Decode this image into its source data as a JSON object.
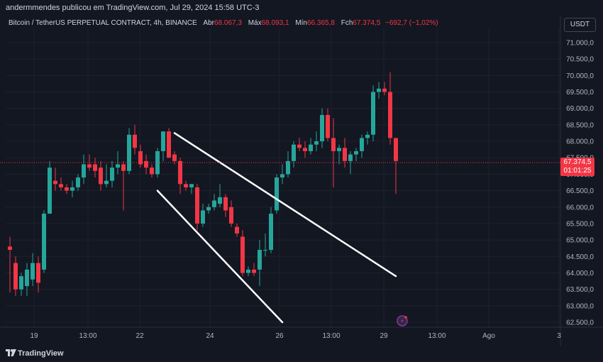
{
  "header": {
    "publish_line": "andermmendes publicou em TradingView.com, Jul 29, 2024 15:58 UTC-3"
  },
  "symbol": {
    "title": "Bitcoin / TetherUS PERPETUAL CONTRACT, 4h, BINANCE",
    "open_label": "Abr",
    "open_value": "68.067,3",
    "high_label": "Máx",
    "high_value": "68.093,1",
    "low_label": "Mín",
    "low_value": "66.365,8",
    "close_label": "Fch",
    "close_value": "67.374,5",
    "change_value": "−692,7 (−1,02%)"
  },
  "currency_button": "USDT",
  "price_tag": {
    "price": "67.374,5",
    "countdown": "01:01:25",
    "color": "#f23645"
  },
  "footer": {
    "brand": "TradingView"
  },
  "colors": {
    "up": "#26a69a",
    "down": "#f23645",
    "background": "#131722",
    "grid": "#1e222d",
    "trendline": "#ffffff"
  },
  "chart_data": {
    "type": "candlestick",
    "title": "Bitcoin / TetherUS PERPETUAL CONTRACT, 4h, BINANCE",
    "ylim": [
      62300,
      71300
    ],
    "y_ticks": [
      "71.000,0",
      "70.500,0",
      "70.000,0",
      "69.500,0",
      "69.000,0",
      "68.500,0",
      "68.000,0",
      "67.500,0",
      "67.000,0",
      "66.500,0",
      "66.000,0",
      "65.500,0",
      "65.000,0",
      "64.500,0",
      "64.000,0",
      "63.500,0",
      "63.000,0",
      "62.500,0"
    ],
    "x_ticks": [
      "19",
      "13:00",
      "22",
      "24",
      "26",
      "13:00",
      "29",
      "13:00",
      "Ago",
      "3"
    ],
    "candles": [
      {
        "o": 64800,
        "h": 65100,
        "l": 63400,
        "c": 64700
      },
      {
        "o": 64300,
        "h": 64500,
        "l": 63300,
        "c": 63500
      },
      {
        "o": 63500,
        "h": 64000,
        "l": 63300,
        "c": 63900
      },
      {
        "o": 63600,
        "h": 64300,
        "l": 63300,
        "c": 64100
      },
      {
        "o": 63800,
        "h": 64600,
        "l": 63600,
        "c": 64300
      },
      {
        "o": 64300,
        "h": 64500,
        "l": 63400,
        "c": 63700
      },
      {
        "o": 64100,
        "h": 65900,
        "l": 64000,
        "c": 65800
      },
      {
        "o": 65800,
        "h": 67400,
        "l": 65800,
        "c": 67200
      },
      {
        "o": 66800,
        "h": 67200,
        "l": 66500,
        "c": 66700
      },
      {
        "o": 66700,
        "h": 66900,
        "l": 66500,
        "c": 66600
      },
      {
        "o": 66600,
        "h": 66700,
        "l": 66400,
        "c": 66500
      },
      {
        "o": 66500,
        "h": 66800,
        "l": 66300,
        "c": 66600
      },
      {
        "o": 66600,
        "h": 67000,
        "l": 66500,
        "c": 66900
      },
      {
        "o": 66900,
        "h": 67600,
        "l": 66700,
        "c": 67300
      },
      {
        "o": 67300,
        "h": 67600,
        "l": 67100,
        "c": 67200
      },
      {
        "o": 67300,
        "h": 67500,
        "l": 66900,
        "c": 67100
      },
      {
        "o": 67200,
        "h": 67400,
        "l": 66500,
        "c": 66700
      },
      {
        "o": 66700,
        "h": 67300,
        "l": 66600,
        "c": 66800
      },
      {
        "o": 66800,
        "h": 67400,
        "l": 66600,
        "c": 67200
      },
      {
        "o": 67200,
        "h": 67700,
        "l": 67000,
        "c": 67300
      },
      {
        "o": 67300,
        "h": 67400,
        "l": 65900,
        "c": 67100
      },
      {
        "o": 67100,
        "h": 68400,
        "l": 67000,
        "c": 68200
      },
      {
        "o": 68200,
        "h": 68500,
        "l": 67600,
        "c": 67800
      },
      {
        "o": 67700,
        "h": 67900,
        "l": 67200,
        "c": 67300
      },
      {
        "o": 67400,
        "h": 67600,
        "l": 67000,
        "c": 67200
      },
      {
        "o": 67200,
        "h": 67300,
        "l": 66900,
        "c": 67000
      },
      {
        "o": 67000,
        "h": 67800,
        "l": 66900,
        "c": 67700
      },
      {
        "o": 67700,
        "h": 68300,
        "l": 67400,
        "c": 68300
      },
      {
        "o": 68300,
        "h": 68400,
        "l": 67500,
        "c": 67500
      },
      {
        "o": 67600,
        "h": 67700,
        "l": 67300,
        "c": 67400
      },
      {
        "o": 67400,
        "h": 67500,
        "l": 66400,
        "c": 66700
      },
      {
        "o": 66700,
        "h": 66800,
        "l": 66500,
        "c": 66600
      },
      {
        "o": 66600,
        "h": 66700,
        "l": 66400,
        "c": 66700
      },
      {
        "o": 66600,
        "h": 66700,
        "l": 65300,
        "c": 65500
      },
      {
        "o": 65500,
        "h": 66100,
        "l": 65400,
        "c": 65900
      },
      {
        "o": 65900,
        "h": 66100,
        "l": 65800,
        "c": 66000
      },
      {
        "o": 66000,
        "h": 66400,
        "l": 65900,
        "c": 66200
      },
      {
        "o": 66100,
        "h": 66700,
        "l": 66000,
        "c": 66300
      },
      {
        "o": 66300,
        "h": 66400,
        "l": 65700,
        "c": 65900
      },
      {
        "o": 66000,
        "h": 66200,
        "l": 65400,
        "c": 65500
      },
      {
        "o": 65400,
        "h": 65500,
        "l": 65100,
        "c": 65200
      },
      {
        "o": 65100,
        "h": 65300,
        "l": 63900,
        "c": 64000
      },
      {
        "o": 64000,
        "h": 64200,
        "l": 63900,
        "c": 64100
      },
      {
        "o": 64100,
        "h": 64300,
        "l": 63900,
        "c": 64000
      },
      {
        "o": 64100,
        "h": 65000,
        "l": 63600,
        "c": 64700
      },
      {
        "o": 64700,
        "h": 65200,
        "l": 64500,
        "c": 64700
      },
      {
        "o": 64700,
        "h": 66000,
        "l": 64600,
        "c": 65800
      },
      {
        "o": 65900,
        "h": 67000,
        "l": 65800,
        "c": 66900
      },
      {
        "o": 66900,
        "h": 67300,
        "l": 66700,
        "c": 67000
      },
      {
        "o": 67000,
        "h": 67700,
        "l": 66900,
        "c": 67400
      },
      {
        "o": 67400,
        "h": 68000,
        "l": 67200,
        "c": 67900
      },
      {
        "o": 67900,
        "h": 68100,
        "l": 67700,
        "c": 67800
      },
      {
        "o": 67800,
        "h": 68000,
        "l": 67500,
        "c": 67700
      },
      {
        "o": 67700,
        "h": 68100,
        "l": 67600,
        "c": 67900
      },
      {
        "o": 67900,
        "h": 68300,
        "l": 67700,
        "c": 68000
      },
      {
        "o": 68000,
        "h": 69000,
        "l": 67800,
        "c": 68800
      },
      {
        "o": 68800,
        "h": 69000,
        "l": 68000,
        "c": 68100
      },
      {
        "o": 68100,
        "h": 68700,
        "l": 66600,
        "c": 67700
      },
      {
        "o": 67700,
        "h": 67900,
        "l": 67300,
        "c": 67800
      },
      {
        "o": 67800,
        "h": 68100,
        "l": 67200,
        "c": 67400
      },
      {
        "o": 67400,
        "h": 67700,
        "l": 67000,
        "c": 67600
      },
      {
        "o": 67600,
        "h": 67800,
        "l": 67400,
        "c": 67700
      },
      {
        "o": 67700,
        "h": 68200,
        "l": 67500,
        "c": 68100
      },
      {
        "o": 68100,
        "h": 68300,
        "l": 67900,
        "c": 68200
      },
      {
        "o": 68200,
        "h": 69700,
        "l": 68000,
        "c": 69500
      },
      {
        "o": 69500,
        "h": 69800,
        "l": 69300,
        "c": 69600
      },
      {
        "o": 69600,
        "h": 69800,
        "l": 69400,
        "c": 69500
      },
      {
        "o": 69500,
        "h": 70100,
        "l": 67900,
        "c": 68100
      },
      {
        "o": 68100,
        "h": 68100,
        "l": 66400,
        "c": 67400
      }
    ],
    "trendlines": [
      {
        "from_candle": 29,
        "from_price": 68250,
        "to_candle": 68,
        "to_price": 63900
      },
      {
        "from_candle": 26,
        "from_price": 66500,
        "to_candle": 48,
        "to_price": 62500
      }
    ]
  }
}
